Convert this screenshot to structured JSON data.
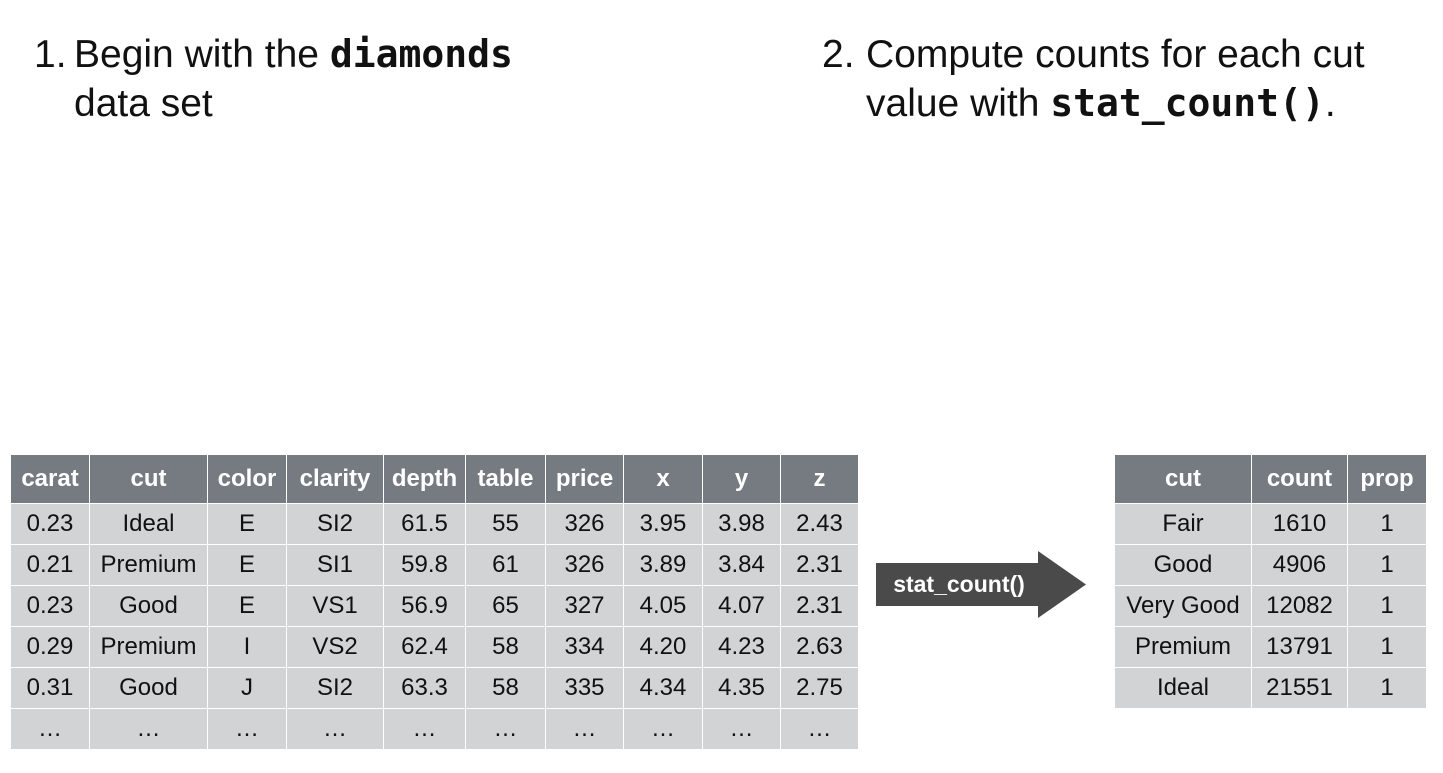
{
  "step1": {
    "number": "1.",
    "text_before": "Begin with the ",
    "code": "diamonds",
    "text_after": " data set"
  },
  "step2": {
    "number": "2.",
    "text_before": "Compute counts for each cut value with ",
    "code": "stat_count()",
    "text_after": "."
  },
  "diamonds_table": {
    "headers": [
      "carat",
      "cut",
      "color",
      "clarity",
      "depth",
      "table",
      "price",
      "x",
      "y",
      "z"
    ],
    "rows": [
      [
        "0.23",
        "Ideal",
        "E",
        "SI2",
        "61.5",
        "55",
        "326",
        "3.95",
        "3.98",
        "2.43"
      ],
      [
        "0.21",
        "Premium",
        "E",
        "SI1",
        "59.8",
        "61",
        "326",
        "3.89",
        "3.84",
        "2.31"
      ],
      [
        "0.23",
        "Good",
        "E",
        "VS1",
        "56.9",
        "65",
        "327",
        "4.05",
        "4.07",
        "2.31"
      ],
      [
        "0.29",
        "Premium",
        "I",
        "VS2",
        "62.4",
        "58",
        "334",
        "4.20",
        "4.23",
        "2.63"
      ],
      [
        "0.31",
        "Good",
        "J",
        "SI2",
        "63.3",
        "58",
        "335",
        "4.34",
        "4.35",
        "2.75"
      ],
      [
        "…",
        "…",
        "…",
        "…",
        "…",
        "…",
        "…",
        "…",
        "…",
        "…"
      ]
    ]
  },
  "arrow": {
    "label": "stat_count()",
    "color": "#4a4a4a"
  },
  "count_table": {
    "headers": [
      "cut",
      "count",
      "prop"
    ],
    "rows": [
      [
        "Fair",
        "1610",
        "1"
      ],
      [
        "Good",
        "4906",
        "1"
      ],
      [
        "Very Good",
        "12082",
        "1"
      ],
      [
        "Premium",
        "13791",
        "1"
      ],
      [
        "Ideal",
        "21551",
        "1"
      ]
    ]
  },
  "colors": {
    "header_bg": "#767b81",
    "cell_bg": "#d2d3d4",
    "arrow": "#4a4a4a"
  }
}
